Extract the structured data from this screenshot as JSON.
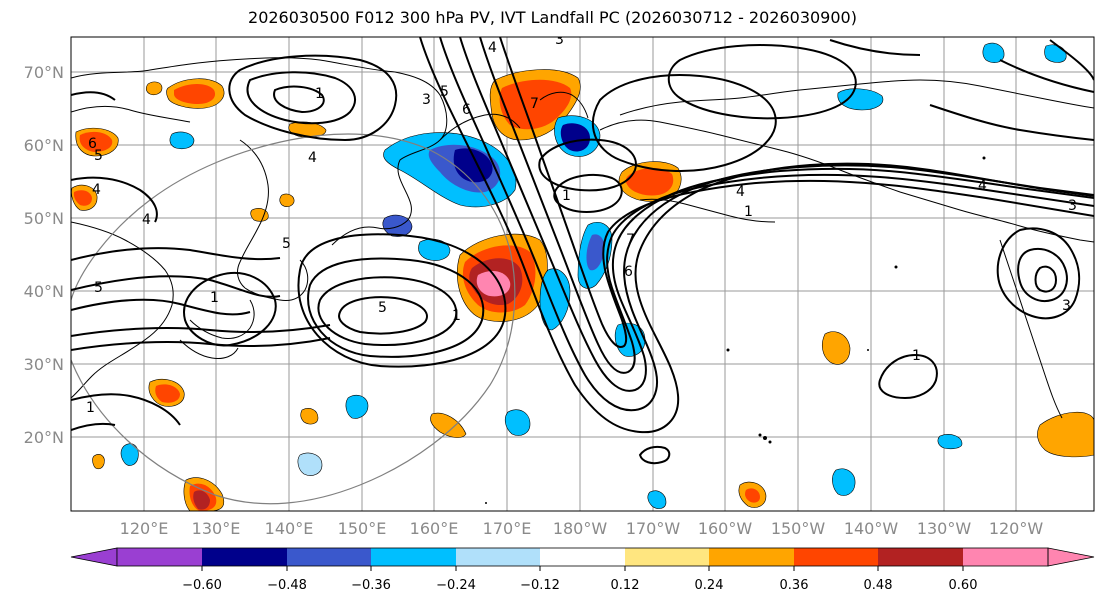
{
  "title": "2026030500 F012 300 hPa PV, IVT Landfall PC (2026030712 - 2026030900)",
  "lat_labels": [
    "70°N",
    "60°N",
    "50°N",
    "40°N",
    "30°N",
    "20°N"
  ],
  "lon_labels": [
    "120°E",
    "130°E",
    "140°E",
    "150°E",
    "160°E",
    "170°E",
    "180°W",
    "170°W",
    "160°W",
    "150°W",
    "140°W",
    "130°W",
    "120°W"
  ],
  "colorbar": {
    "tick_labels": [
      "−0.60",
      "−0.48",
      "−0.36",
      "−0.24",
      "−0.12",
      "0.12",
      "0.24",
      "0.36",
      "0.48",
      "0.60"
    ],
    "colors": [
      "#9a3fd2",
      "#00008b",
      "#3a58cc",
      "#00bfff",
      "#b0e0fa",
      "#ffffff",
      "#ffe680",
      "#ffa500",
      "#ff4500",
      "#b22222",
      "#ff85b0",
      "#ff85b0"
    ]
  },
  "contour_labels": [
    "1",
    "3",
    "4",
    "5",
    "6",
    "7"
  ],
  "colors": {
    "grid": "#9a9a9a",
    "coast": "#000000",
    "contour": "#000000",
    "circle": "#808080"
  }
}
